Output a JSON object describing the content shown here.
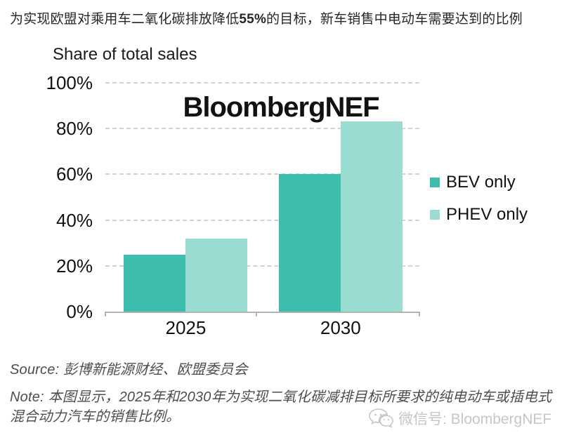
{
  "header": {
    "title_pre": "为实现欧盟对乘用车二氧化碳排放降低",
    "title_bold": "55%",
    "title_post": "的目标，新车销售中电动车需要达到的比例"
  },
  "chart_data": {
    "type": "bar",
    "title": "Share of total sales",
    "watermark": "BloombergNEF",
    "categories": [
      "2025",
      "2030"
    ],
    "series": [
      {
        "name": "BEV only",
        "color": "#3dbdab",
        "values": [
          25,
          60
        ]
      },
      {
        "name": "PHEV only",
        "color": "#9adcd1",
        "values": [
          32,
          83
        ]
      }
    ],
    "unit": "%",
    "ylim": [
      0,
      100
    ],
    "ytick_values": [
      0,
      20,
      40,
      60,
      80,
      100
    ],
    "gridline_values": [
      20,
      40,
      60,
      80,
      100
    ],
    "grid_style": "dashed-horizontal",
    "legend_position": "right",
    "group_centers_pct": [
      25.6,
      74.9
    ],
    "axis_tick_positions_pct": [
      0,
      48,
      100
    ]
  },
  "footer": {
    "source_label": "Source:",
    "source_text": " 彭博新能源财经、欧盟委员会",
    "note_label": "Note:",
    "note_text": " 本图显示，2025年和2030年为实现二氧化碳减排目标所要求的纯电动车或插电式混合动力汽车的销售比例。",
    "wechat_text": "微信号: BloombergNEF"
  },
  "colors": {
    "bev": "#3dbdab",
    "phev": "#9adcd1",
    "grid": "#d2d2d2",
    "axis": "#b3b3b3",
    "watermark_gray": "#c6c6c6"
  }
}
